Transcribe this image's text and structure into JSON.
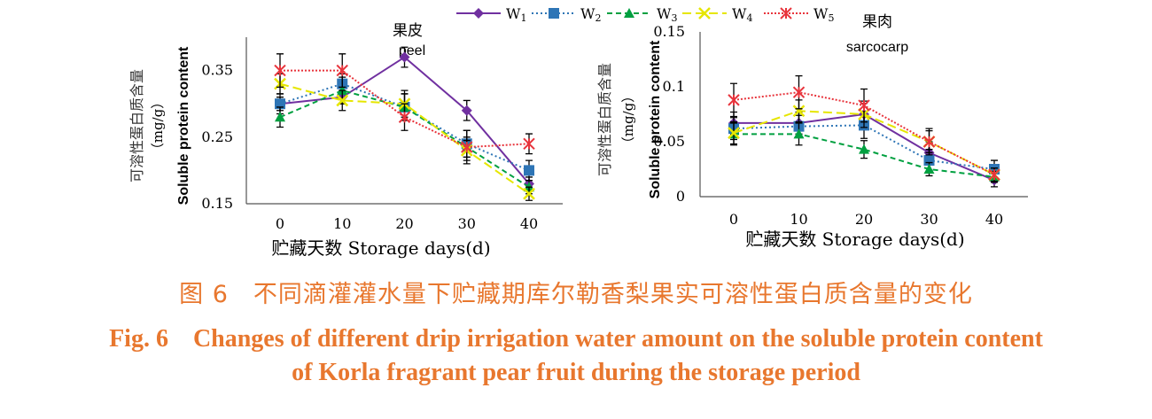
{
  "chart_data": [
    {
      "type": "line",
      "panel": "left",
      "title": "果皮",
      "subtitle": "peel",
      "xlabel": "贮藏天数 Storage days(d)",
      "ylabel_cn": "可溶性蛋白质含量",
      "ylabel_unit": "（mg/g）",
      "ylabel_en": "Soluble protein content",
      "x": [
        0,
        10,
        20,
        30,
        40
      ],
      "xticks": [
        "0",
        "10",
        "20",
        "30",
        "40"
      ],
      "ylim": [
        0.15,
        0.4
      ],
      "yticks": [
        0.15,
        0.25,
        0.35
      ],
      "ytick_labels": [
        "0.15",
        "0.25",
        "0.35"
      ],
      "series": [
        {
          "name": "W1",
          "values": [
            0.3,
            0.31,
            0.37,
            0.29,
            0.18
          ],
          "err": [
            0.01,
            0.01,
            0.015,
            0.015,
            0.01
          ]
        },
        {
          "name": "W2",
          "values": [
            0.3,
            0.33,
            0.295,
            0.24,
            0.2
          ],
          "err": [
            0.015,
            0.015,
            0.02,
            0.02,
            0.015
          ]
        },
        {
          "name": "W3",
          "values": [
            0.28,
            0.32,
            0.295,
            0.235,
            0.175
          ],
          "err": [
            0.015,
            0.02,
            0.02,
            0.015,
            0.01
          ]
        },
        {
          "name": "W4",
          "values": [
            0.33,
            0.305,
            0.3,
            0.23,
            0.165
          ],
          "err": [
            0.015,
            0.015,
            0.02,
            0.015,
            0.01
          ]
        },
        {
          "name": "W5",
          "values": [
            0.35,
            0.35,
            0.28,
            0.235,
            0.24
          ],
          "err": [
            0.025,
            0.025,
            0.02,
            0.025,
            0.015
          ]
        }
      ]
    },
    {
      "type": "line",
      "panel": "right",
      "title": "果肉",
      "subtitle": "sarcocarp",
      "xlabel": "贮藏天数 Storage days(d)",
      "ylabel_cn": "可溶性蛋白质含量",
      "ylabel_unit": "（mg/g）",
      "ylabel_en": "Soluble protein content",
      "x": [
        0,
        10,
        20,
        30,
        40
      ],
      "xticks": [
        "0",
        "10",
        "20",
        "30",
        "40"
      ],
      "ylim": [
        0,
        0.15
      ],
      "yticks": [
        0,
        0.05,
        0.1,
        0.15
      ],
      "ytick_labels": [
        "0",
        "0.05",
        "0.1",
        "0.15"
      ],
      "series": [
        {
          "name": "W1",
          "values": [
            0.067,
            0.067,
            0.075,
            0.04,
            0.015
          ],
          "err": [
            0.01,
            0.01,
            0.01,
            0.01,
            0.006
          ]
        },
        {
          "name": "W2",
          "values": [
            0.062,
            0.064,
            0.065,
            0.033,
            0.025
          ],
          "err": [
            0.01,
            0.01,
            0.012,
            0.01,
            0.008
          ]
        },
        {
          "name": "W3",
          "values": [
            0.057,
            0.057,
            0.043,
            0.025,
            0.018
          ],
          "err": [
            0.01,
            0.01,
            0.008,
            0.006,
            0.005
          ]
        },
        {
          "name": "W4",
          "values": [
            0.058,
            0.078,
            0.075,
            0.05,
            0.02
          ],
          "err": [
            0.01,
            0.01,
            0.012,
            0.01,
            0.006
          ]
        },
        {
          "name": "W5",
          "values": [
            0.088,
            0.095,
            0.083,
            0.05,
            0.02
          ],
          "err": [
            0.015,
            0.015,
            0.015,
            0.012,
            0.006
          ]
        }
      ]
    }
  ],
  "legend": [
    {
      "base": "W",
      "sub": "1",
      "color": "#7030a0",
      "marker": "diamond",
      "dash": ""
    },
    {
      "base": "W",
      "sub": "2",
      "color": "#2e75b6",
      "marker": "square",
      "dash": "2,3"
    },
    {
      "base": "W",
      "sub": "3",
      "color": "#00a040",
      "marker": "triangle",
      "dash": "6,4"
    },
    {
      "base": "W",
      "sub": "4",
      "color": "#e6e600",
      "marker": "x",
      "dash": "10,5"
    },
    {
      "base": "W",
      "sub": "5",
      "color": "#e8343c",
      "marker": "star",
      "dash": "2,2"
    }
  ],
  "caption": {
    "cn": "图 6　不同滴灌灌水量下贮藏期库尔勒香梨果实可溶性蛋白质含量的变化",
    "en_line1": "Fig. 6　Changes of different drip irrigation water amount on the soluble protein content",
    "en_line2": "of Korla fragrant pear fruit during the storage period"
  },
  "colors": {
    "caption": "#e8772e",
    "axis": "#555555",
    "error_bar": "#000000"
  }
}
